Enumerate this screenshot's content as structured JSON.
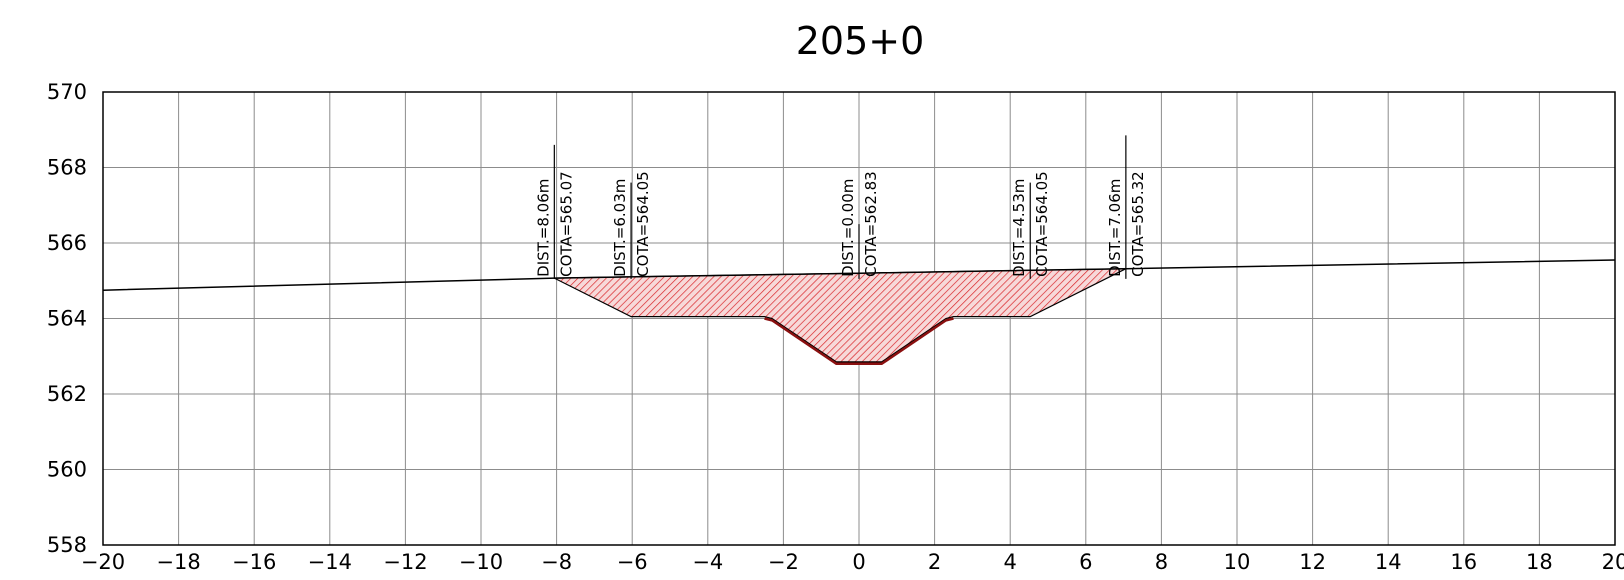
{
  "chart_data": {
    "type": "cross-section",
    "title": "205+0",
    "xlim": [
      -20,
      20
    ],
    "ylim": [
      558,
      570
    ],
    "x_ticks": [
      {
        "value": -20,
        "label": "−20"
      },
      {
        "value": -18,
        "label": "−18"
      },
      {
        "value": -16,
        "label": "−16"
      },
      {
        "value": -14,
        "label": "−14"
      },
      {
        "value": -12,
        "label": "−12"
      },
      {
        "value": -10,
        "label": "−10"
      },
      {
        "value": -8,
        "label": "−8"
      },
      {
        "value": -6,
        "label": "−6"
      },
      {
        "value": -4,
        "label": "−4"
      },
      {
        "value": -2,
        "label": "−2"
      },
      {
        "value": 0,
        "label": "0"
      },
      {
        "value": 2,
        "label": "2"
      },
      {
        "value": 4,
        "label": "4"
      },
      {
        "value": 6,
        "label": "6"
      },
      {
        "value": 8,
        "label": "8"
      },
      {
        "value": 10,
        "label": "10"
      },
      {
        "value": 12,
        "label": "12"
      },
      {
        "value": 14,
        "label": "14"
      },
      {
        "value": 16,
        "label": "16"
      },
      {
        "value": 18,
        "label": "18"
      },
      {
        "value": 20,
        "label": "20"
      }
    ],
    "y_ticks": [
      {
        "value": 570,
        "label": "570"
      },
      {
        "value": 568,
        "label": "568"
      },
      {
        "value": 566,
        "label": "566"
      },
      {
        "value": 564,
        "label": "564"
      },
      {
        "value": 562,
        "label": "562"
      },
      {
        "value": 560,
        "label": "560"
      },
      {
        "value": 558,
        "label": "558"
      }
    ],
    "grid": true,
    "terrain_line": [
      [
        -20,
        564.75
      ],
      [
        -8.06,
        565.07
      ],
      [
        0,
        565.2
      ],
      [
        7.06,
        565.32
      ],
      [
        20,
        565.55
      ]
    ],
    "excavation_outline": [
      [
        -8.06,
        565.07
      ],
      [
        -6.03,
        564.05
      ],
      [
        -2.5,
        564.05
      ],
      [
        -2.3,
        564.0
      ],
      [
        -0.6,
        562.85
      ],
      [
        0.6,
        562.85
      ],
      [
        2.3,
        564.0
      ],
      [
        2.5,
        564.05
      ],
      [
        4.53,
        564.05
      ],
      [
        7.06,
        565.32
      ],
      [
        0,
        565.2
      ]
    ],
    "excavation_bottom": [
      [
        -2.5,
        564.0
      ],
      [
        -2.3,
        563.95
      ],
      [
        -0.6,
        562.8
      ],
      [
        0.6,
        562.8
      ],
      [
        2.3,
        563.95
      ],
      [
        2.5,
        564.0
      ]
    ],
    "fill_color": "#d9262a",
    "annotations": [
      {
        "x": -8.06,
        "dist": "DIST.=8.06m",
        "cota": "COTA=565.07",
        "color": "#000000",
        "y_top": 568.6
      },
      {
        "x": -6.03,
        "dist": "DIST.=6.03m",
        "cota": "COTA=564.05",
        "color": "#000000",
        "y_top": 567.6
      },
      {
        "x": 0.0,
        "dist": "DIST.=0.00m",
        "cota": "COTA=562.83",
        "color": "#000000",
        "y_top": 566.5
      },
      {
        "x": 4.53,
        "dist": "DIST.=4.53m",
        "cota": "COTA=564.05",
        "color": "#000000",
        "y_top": 567.6
      },
      {
        "x": 7.06,
        "dist": "DIST.=7.06m",
        "cota": "COTA=565.32",
        "color": "#000000",
        "y_top": 568.85
      }
    ]
  }
}
